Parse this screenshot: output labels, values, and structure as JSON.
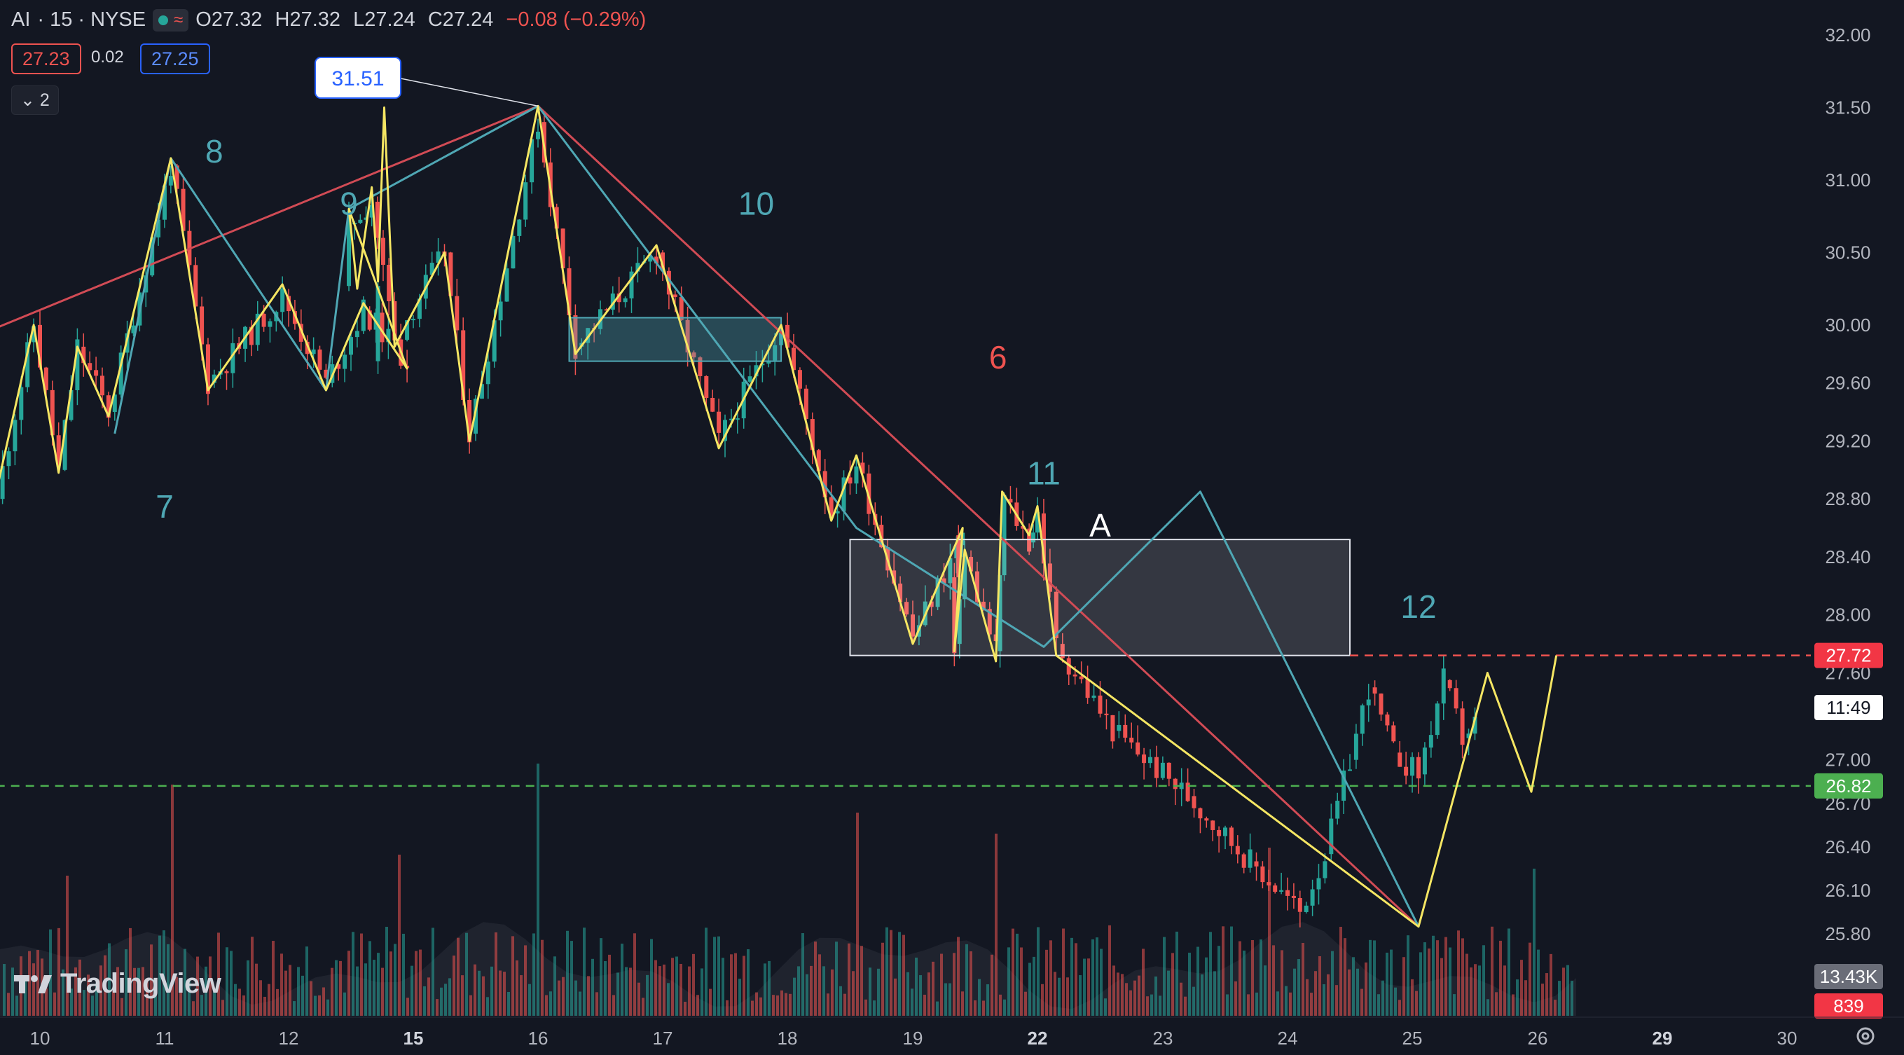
{
  "header": {
    "symbol": "AI",
    "interval": "· 15 · NYSE",
    "open": "O27.32",
    "high": "H27.32",
    "low": "L27.24",
    "close": "C27.24",
    "change": "−0.08 (−0.29%)"
  },
  "trading": {
    "sell_price": "27.23",
    "spread": "0.02",
    "buy_price": "27.25"
  },
  "indicators_toggle": "2",
  "branding": {
    "logo_text": "TradingView"
  },
  "colors": {
    "background": "#131722",
    "teal_line": "#4fa7b4",
    "yellow_line": "#f5e663",
    "red_line": "#d14b55",
    "wave_label_teal": "#4fa7b4",
    "wave_label_red": "#ef5350",
    "candle_up": "#26a69a",
    "candle_down": "#ef5350",
    "resistance_line": "#ef5350",
    "support_line": "#4caf50"
  },
  "chart_data": {
    "type": "candlestick",
    "x_axis_labels": [
      "10",
      "11",
      "12",
      "15",
      "16",
      "17",
      "18",
      "19",
      "22",
      "23",
      "24",
      "25",
      "26",
      "29",
      "30"
    ],
    "y_axis_labels": [
      "32.00",
      "31.50",
      "31.00",
      "30.50",
      "30.00",
      "29.60",
      "29.20",
      "28.80",
      "28.40",
      "28.00",
      "27.60",
      "27.00",
      "26.70",
      "26.40",
      "26.10",
      "25.80"
    ],
    "ylim": [
      25.6,
      32.15
    ],
    "price_tags": [
      {
        "value": "27.72",
        "price": 27.72,
        "kind": "resistance"
      },
      {
        "value": "11:49",
        "kind": "countdown"
      },
      {
        "value": "26.82",
        "price": 26.82,
        "kind": "support"
      }
    ],
    "volume_tags": [
      {
        "value": "13.43K",
        "kind": "volume_ma"
      },
      {
        "value": "839",
        "kind": "volume"
      }
    ],
    "high_callout": {
      "label": "31.51",
      "price": 31.51,
      "time": 16
    },
    "wave_labels": [
      {
        "text": "7",
        "time": 11,
        "price": 28.67,
        "color": "teal"
      },
      {
        "text": "8",
        "time": 11.4,
        "price": 31.12,
        "color": "teal"
      },
      {
        "text": "9",
        "time": 13.45,
        "price": 30.76,
        "color": "teal"
      },
      {
        "text": "10",
        "time": 17.75,
        "price": 30.76,
        "color": "teal"
      },
      {
        "text": "6",
        "time": 21.05,
        "price": 29.7,
        "color": "red"
      },
      {
        "text": "11",
        "time": 22.05,
        "price": 28.9,
        "color": "teal"
      },
      {
        "text": "A",
        "time": 22.5,
        "price": 28.54,
        "color": "white"
      },
      {
        "text": "12",
        "time": 25.05,
        "price": 27.98,
        "color": "teal"
      }
    ],
    "zigzag_red": [
      {
        "time": 9.65,
        "price": 29.98
      },
      {
        "time": 16,
        "price": 31.51
      },
      {
        "time": 25.05,
        "price": 25.85
      }
    ],
    "zigzag_teal": [
      {
        "time": 10.6,
        "price": 29.25
      },
      {
        "time": 11.05,
        "price": 31.15
      },
      {
        "time": 12.3,
        "price": 29.55
      },
      {
        "time": 13.45,
        "price": 30.8
      },
      {
        "time": 16,
        "price": 31.51
      },
      {
        "time": 18.55,
        "price": 28.6
      },
      {
        "time": 22.05,
        "price": 27.78
      },
      {
        "time": 23.3,
        "price": 28.85
      },
      {
        "time": 25.05,
        "price": 25.85
      }
    ],
    "zigzag_yellow": [
      {
        "time": 9.65,
        "price": 28.85
      },
      {
        "time": 9.95,
        "price": 30.0
      },
      {
        "time": 10.15,
        "price": 28.98
      },
      {
        "time": 10.3,
        "price": 29.85
      },
      {
        "time": 10.55,
        "price": 29.37
      },
      {
        "time": 11.05,
        "price": 31.15
      },
      {
        "time": 11.35,
        "price": 29.55
      },
      {
        "time": 11.95,
        "price": 30.28
      },
      {
        "time": 12.3,
        "price": 29.55
      },
      {
        "time": 12.6,
        "price": 30.15
      },
      {
        "time": 12.95,
        "price": 29.7
      },
      {
        "time": 13.45,
        "price": 30.8
      },
      {
        "time": 13.65,
        "price": 30.25
      },
      {
        "time": 14.0,
        "price": 30.95
      },
      {
        "time": 14.15,
        "price": 30.3
      },
      {
        "time": 14.3,
        "price": 31.5
      },
      {
        "time": 14.55,
        "price": 29.85
      },
      {
        "time": 15.25,
        "price": 30.5
      },
      {
        "time": 15.45,
        "price": 29.2
      },
      {
        "time": 16,
        "price": 31.51
      },
      {
        "time": 16.3,
        "price": 29.8
      },
      {
        "time": 16.95,
        "price": 30.55
      },
      {
        "time": 17.45,
        "price": 29.15
      },
      {
        "time": 17.95,
        "price": 30.0
      },
      {
        "time": 18.35,
        "price": 28.65
      },
      {
        "time": 18.55,
        "price": 29.1
      },
      {
        "time": 19.0,
        "price": 27.8
      },
      {
        "time": 19.4,
        "price": 28.6
      },
      {
        "time": 20.0,
        "price": 27.75
      },
      {
        "time": 20.25,
        "price": 28.45
      },
      {
        "time": 21.0,
        "price": 27.68
      },
      {
        "time": 21.15,
        "price": 28.85
      },
      {
        "time": 21.8,
        "price": 28.55
      },
      {
        "time": 22.0,
        "price": 28.75
      },
      {
        "time": 22.15,
        "price": 27.72
      },
      {
        "time": 25.05,
        "price": 25.85
      },
      {
        "time": 25.6,
        "price": 27.6
      },
      {
        "time": 25.95,
        "price": 26.78
      },
      {
        "time": 26.15,
        "price": 27.72
      }
    ],
    "consolidation_boxes": [
      {
        "time_start": 16.25,
        "time_end": 17.95,
        "price_low": 29.75,
        "price_high": 30.05,
        "style": "teal"
      },
      {
        "time_start": 18.5,
        "time_end": 24.5,
        "price_low": 27.72,
        "price_high": 28.52,
        "style": "gray"
      }
    ],
    "horizontal_lines": [
      {
        "price": 27.72,
        "time_start": 24.5,
        "color": "red",
        "dashed": true
      },
      {
        "price": 26.82,
        "time_start": 9.65,
        "color": "green",
        "dashed": true
      }
    ],
    "candles_anchors": [
      {
        "time": 9.65,
        "price": 28.8
      },
      {
        "time": 9.95,
        "price": 30.0
      },
      {
        "time": 10.15,
        "price": 29.0
      },
      {
        "time": 10.3,
        "price": 29.85
      },
      {
        "time": 10.55,
        "price": 29.4
      },
      {
        "time": 11.05,
        "price": 31.1
      },
      {
        "time": 11.35,
        "price": 29.6
      },
      {
        "time": 11.95,
        "price": 30.2
      },
      {
        "time": 12.3,
        "price": 29.6
      },
      {
        "time": 12.6,
        "price": 30.1
      },
      {
        "time": 12.95,
        "price": 29.75
      },
      {
        "time": 13.45,
        "price": 30.7
      },
      {
        "time": 14.0,
        "price": 30.85
      },
      {
        "time": 14.55,
        "price": 29.9
      },
      {
        "time": 15.25,
        "price": 30.5
      },
      {
        "time": 15.45,
        "price": 29.25
      },
      {
        "time": 16.0,
        "price": 31.4
      },
      {
        "time": 16.3,
        "price": 29.85
      },
      {
        "time": 16.95,
        "price": 30.5
      },
      {
        "time": 17.45,
        "price": 29.2
      },
      {
        "time": 17.95,
        "price": 30.0
      },
      {
        "time": 18.35,
        "price": 28.7
      },
      {
        "time": 18.55,
        "price": 29.05
      },
      {
        "time": 19.0,
        "price": 27.85
      },
      {
        "time": 19.4,
        "price": 28.55
      },
      {
        "time": 20.0,
        "price": 27.8
      },
      {
        "time": 20.25,
        "price": 28.4
      },
      {
        "time": 21.0,
        "price": 27.75
      },
      {
        "time": 21.2,
        "price": 28.8
      },
      {
        "time": 21.8,
        "price": 28.5
      },
      {
        "time": 22.0,
        "price": 28.7
      },
      {
        "time": 22.15,
        "price": 27.8
      },
      {
        "time": 22.6,
        "price": 27.2
      },
      {
        "time": 23.2,
        "price": 26.75
      },
      {
        "time": 23.7,
        "price": 26.3
      },
      {
        "time": 24.1,
        "price": 25.95
      },
      {
        "time": 24.3,
        "price": 26.35
      },
      {
        "time": 24.5,
        "price": 27.0
      },
      {
        "time": 24.65,
        "price": 27.5
      },
      {
        "time": 24.85,
        "price": 27.05
      },
      {
        "time": 25.05,
        "price": 26.9
      },
      {
        "time": 25.25,
        "price": 27.55
      },
      {
        "time": 25.4,
        "price": 27.15
      },
      {
        "time": 25.5,
        "price": 27.25
      }
    ],
    "volume_pattern": "bars along bottom, spikes near 11, 15.9, 18.55, 21.0, 23.85, 25.95"
  }
}
